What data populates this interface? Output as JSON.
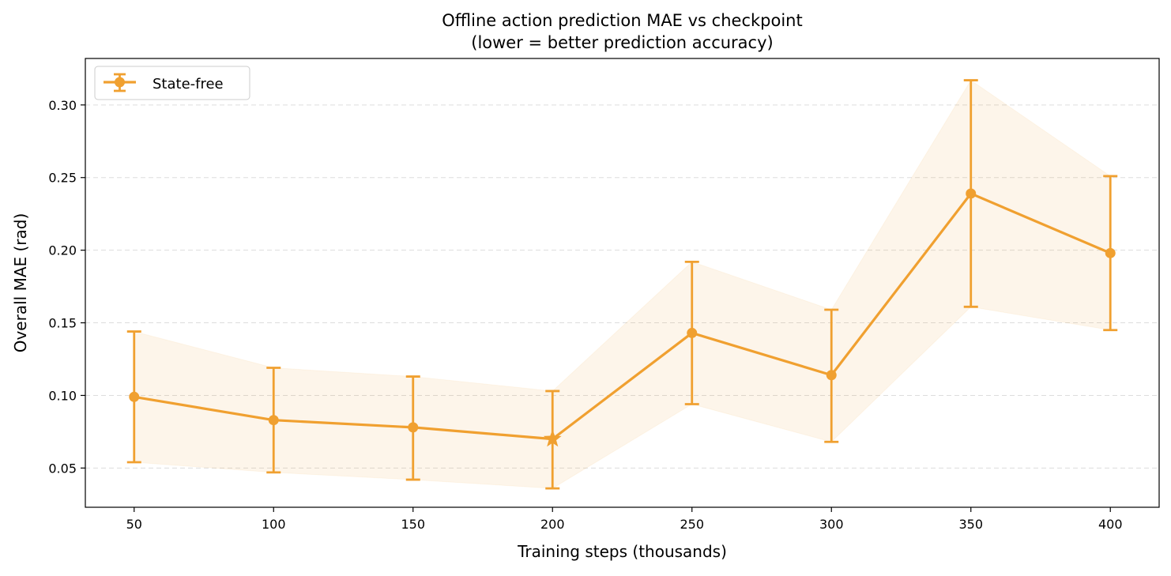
{
  "chart_data": {
    "type": "line",
    "title": "Offline action prediction MAE vs checkpoint",
    "subtitle": "(lower = better prediction accuracy)",
    "xlabel": "Training steps (thousands)",
    "ylabel": "Overall MAE (rad)",
    "x_ticks": [
      "50",
      "100",
      "150",
      "200",
      "250",
      "300",
      "350",
      "400"
    ],
    "y_ticks": [
      "0.05",
      "0.10",
      "0.15",
      "0.20",
      "0.25",
      "0.30"
    ],
    "xlim": [
      32.5,
      417.5
    ],
    "ylim": [
      0.023,
      0.332
    ],
    "grid": "y-dashed",
    "legend_placement": "top-left",
    "series": [
      {
        "name": "State-free",
        "color": "#f0a030",
        "x": [
          50,
          100,
          150,
          200,
          250,
          300,
          350,
          400
        ],
        "y": [
          0.099,
          0.083,
          0.078,
          0.07,
          0.143,
          0.114,
          0.239,
          0.198
        ],
        "err_low": [
          0.054,
          0.047,
          0.042,
          0.036,
          0.094,
          0.068,
          0.161,
          0.145
        ],
        "err_high": [
          0.144,
          0.119,
          0.113,
          0.103,
          0.192,
          0.159,
          0.317,
          0.251
        ],
        "best_marker_index": 3
      }
    ]
  }
}
